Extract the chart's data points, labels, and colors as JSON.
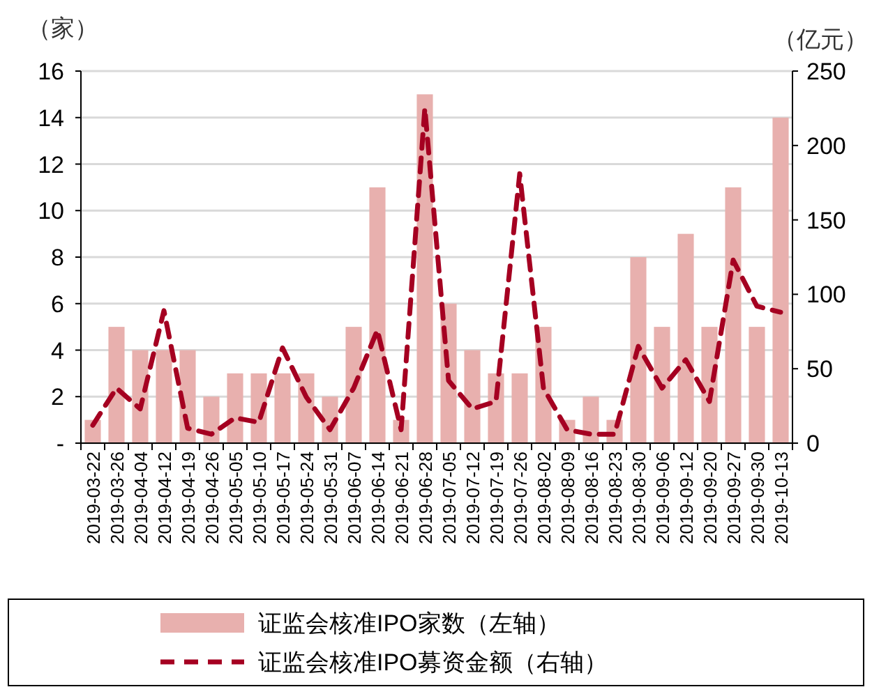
{
  "chart_data": {
    "type": "bar",
    "ylabel": "（家）",
    "y2label": "（亿元）",
    "categories": [
      "2019-03-22",
      "2019-03-26",
      "2019-04-04",
      "2019-04-12",
      "2019-04-19",
      "2019-04-26",
      "2019-05-05",
      "2019-05-10",
      "2019-05-17",
      "2019-05-24",
      "2019-05-31",
      "2019-06-07",
      "2019-06-14",
      "2019-06-21",
      "2019-06-28",
      "2019-07-05",
      "2019-07-12",
      "2019-07-19",
      "2019-07-26",
      "2019-08-02",
      "2019-08-09",
      "2019-08-16",
      "2019-08-23",
      "2019-08-30",
      "2019-09-06",
      "2019-09-12",
      "2019-09-20",
      "2019-09-27",
      "2019-09-30",
      "2019-10-13"
    ],
    "series": [
      {
        "name": "证监会核准IPO家数（左轴）",
        "color": "#e8b0ae",
        "values": [
          1,
          5,
          4,
          4,
          4,
          2,
          3,
          3,
          3,
          3,
          2,
          5,
          11,
          1,
          15,
          6,
          4,
          3,
          3,
          5,
          1,
          2,
          1,
          8,
          5,
          9,
          5,
          11,
          5,
          14
        ]
      },
      {
        "name": "证监会核准IPO募资金额（右轴）",
        "type": "line",
        "axis": "y2",
        "color": "#a50021",
        "line_style": "dashed",
        "values": [
          12,
          37,
          23,
          89,
          10,
          6,
          17,
          14,
          64,
          31,
          9,
          37,
          76,
          9,
          225,
          42,
          23,
          28,
          181,
          37,
          9,
          6,
          6,
          65,
          37,
          56,
          28,
          123,
          92,
          88
        ]
      }
    ],
    "ylim": [
      0,
      16
    ],
    "yticks": [
      {
        "value": 0,
        "label": "-"
      },
      2,
      4,
      6,
      8,
      10,
      12,
      14,
      16
    ],
    "y2lim": [
      0,
      250
    ],
    "y2ticks": [
      0,
      50,
      100,
      150,
      200,
      250
    ],
    "grid": "y",
    "legend": "bottom"
  }
}
